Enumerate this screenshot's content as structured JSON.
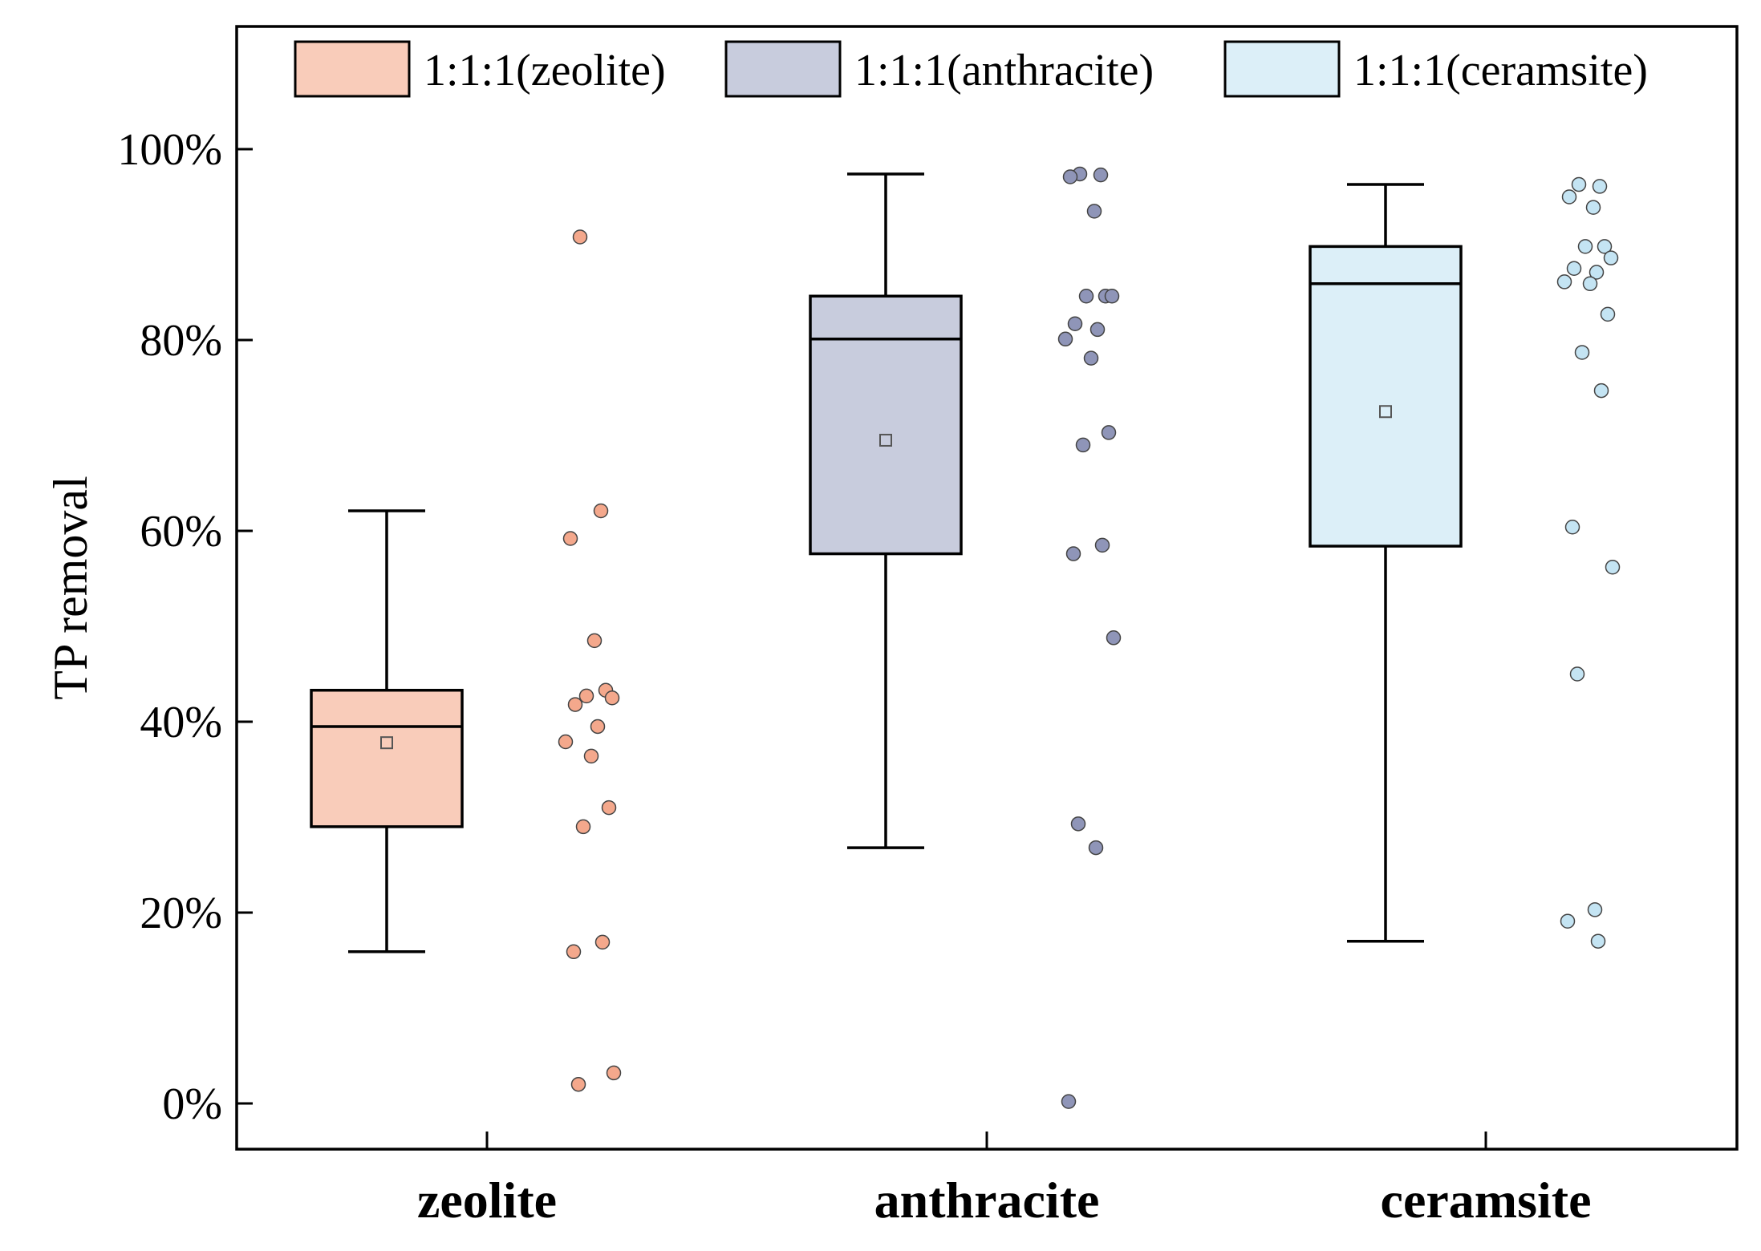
{
  "chart_data": {
    "type": "box",
    "ylabel": "TP removal",
    "xlabel": "",
    "ylim": [
      -0.05,
      1.13
    ],
    "yticks": [
      0,
      0.2,
      0.4,
      0.6,
      0.8,
      1.0
    ],
    "ytick_labels": [
      "0%",
      "20%",
      "40%",
      "60%",
      "80%",
      "100%"
    ],
    "categories": [
      "zeolite",
      "anthracite",
      "ceramsite"
    ],
    "legend_position": "top",
    "series": [
      {
        "name": "1:1:1(zeolite)",
        "category": "zeolite",
        "color": "#F9CCBA",
        "point_color": "#F4A88C",
        "box": {
          "min": 0.159,
          "q1": 0.29,
          "median": 0.395,
          "q3": 0.433,
          "max": 0.621,
          "mean": 0.378
        },
        "points": [
          0.908,
          0.621,
          0.592,
          0.485,
          0.433,
          0.427,
          0.425,
          0.418,
          0.395,
          0.379,
          0.364,
          0.31,
          0.29,
          0.169,
          0.159,
          0.032,
          0.02
        ]
      },
      {
        "name": "1:1:1(anthracite)",
        "category": "anthracite",
        "color": "#C8CCDD",
        "point_color": "#8F95B8",
        "box": {
          "min": 0.268,
          "q1": 0.576,
          "median": 0.801,
          "q3": 0.846,
          "max": 0.974,
          "mean": 0.695
        },
        "points": [
          0.974,
          0.973,
          0.971,
          0.935,
          0.846,
          0.846,
          0.846,
          0.817,
          0.811,
          0.801,
          0.781,
          0.703,
          0.69,
          0.585,
          0.576,
          0.488,
          0.293,
          0.268,
          0.002
        ]
      },
      {
        "name": "1:1:1(ceramsite)",
        "category": "ceramsite",
        "color": "#DCEFF8",
        "point_color": "#C4E4F3",
        "box": {
          "min": 0.17,
          "q1": 0.584,
          "median": 0.859,
          "q3": 0.898,
          "max": 0.963,
          "mean": 0.725
        },
        "points": [
          0.963,
          0.961,
          0.95,
          0.939,
          0.898,
          0.898,
          0.886,
          0.875,
          0.871,
          0.861,
          0.859,
          0.827,
          0.787,
          0.747,
          0.604,
          0.562,
          0.45,
          0.203,
          0.191,
          0.17
        ]
      }
    ]
  }
}
